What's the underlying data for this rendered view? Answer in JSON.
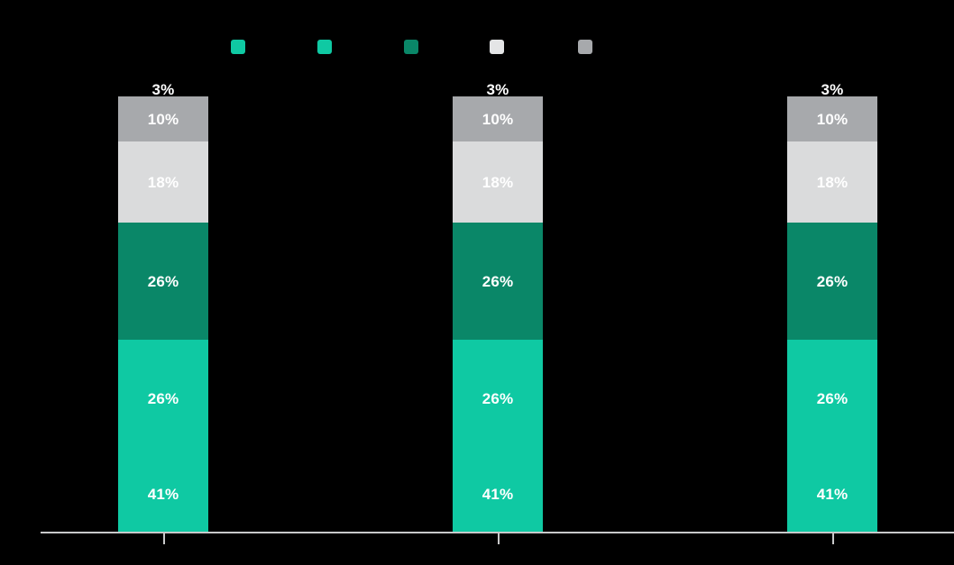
{
  "page": {
    "background": "#000000"
  },
  "legend": {
    "swatches": [
      {
        "name": "teal-1",
        "color": "#0FC9A3",
        "label": ""
      },
      {
        "name": "teal-2",
        "color": "#0FC9A3",
        "label": ""
      },
      {
        "name": "dark-green",
        "color": "#0A8768",
        "label": ""
      },
      {
        "name": "light-gray",
        "color": "#E4E5E6",
        "label": ""
      },
      {
        "name": "medium-gray",
        "color": "#A7A9AC",
        "label": ""
      }
    ]
  },
  "axis": {
    "line_color": "#C8C9CA",
    "tick_color": "#C8C9CA"
  },
  "chart_data": {
    "type": "bar",
    "stacked": true,
    "orientation": "vertical",
    "value_unit": "%",
    "grid": false,
    "legend_position": "top",
    "categories": [
      "",
      "",
      ""
    ],
    "series_bottom_to_top": [
      {
        "label": "41%",
        "color": "#0FC9A3",
        "text_color": "#FFFFFF",
        "values": [
          41,
          41,
          41
        ]
      },
      {
        "label": "26%",
        "color": "#0FC9A3",
        "text_color": "#FFFFFF",
        "values": [
          26,
          26,
          26
        ]
      },
      {
        "label": "26%",
        "color": "#0A8768",
        "text_color": "#FFFFFF",
        "values": [
          26,
          26,
          26
        ]
      },
      {
        "label": "18%",
        "color": "#DADBDC",
        "text_color": "#FFFFFF",
        "values": [
          18,
          18,
          18
        ]
      },
      {
        "label": "10%",
        "color": "#A7A9AC",
        "text_color": "#FFFFFF",
        "values": [
          10,
          10,
          10
        ]
      },
      {
        "label": "3%",
        "color": "#000000",
        "text_color": "#FFFFFF",
        "values": [
          3,
          3,
          3
        ]
      }
    ]
  }
}
